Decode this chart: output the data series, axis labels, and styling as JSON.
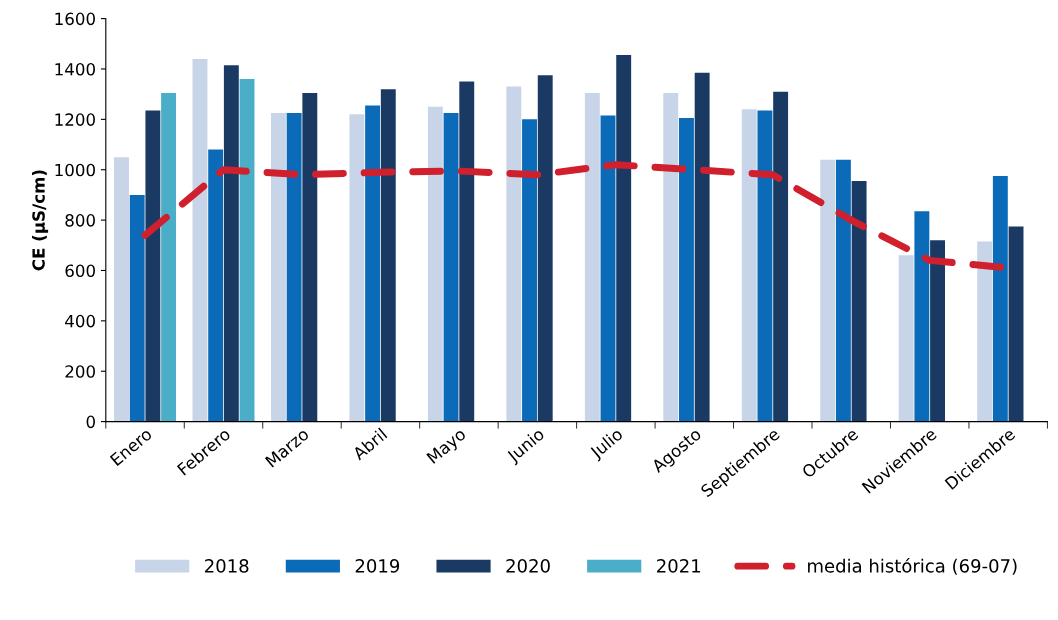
{
  "chart_data": {
    "type": "bar",
    "ylabel": "CE (µS/cm)",
    "categories": [
      "Enero",
      "Febrero",
      "Marzo",
      "Abril",
      "Mayo",
      "Junio",
      "Julio",
      "Agosto",
      "Septiembre",
      "Octubre",
      "Noviembre",
      "Diciembre"
    ],
    "series": [
      {
        "name": "2018",
        "color": "#c8d4e8",
        "values": [
          1050,
          1440,
          1225,
          1220,
          1250,
          1330,
          1305,
          1305,
          1240,
          1040,
          660,
          715
        ]
      },
      {
        "name": "2019",
        "color": "#0b6bb8",
        "values": [
          900,
          1080,
          1225,
          1255,
          1225,
          1200,
          1215,
          1205,
          1235,
          1040,
          835,
          975
        ]
      },
      {
        "name": "2020",
        "color": "#1a3a64",
        "values": [
          1235,
          1415,
          1305,
          1320,
          1350,
          1375,
          1455,
          1385,
          1310,
          955,
          720,
          775
        ]
      },
      {
        "name": "2021",
        "color": "#4aaec8",
        "values": [
          1305,
          1360,
          null,
          null,
          null,
          null,
          null,
          null,
          null,
          null,
          null,
          null
        ]
      },
      {
        "name": "media histórica (69-07)",
        "type": "line",
        "line_style": "dashed",
        "color": "#d0202e",
        "values": [
          740,
          1000,
          980,
          990,
          995,
          980,
          1020,
          1000,
          980,
          800,
          640,
          610
        ]
      }
    ],
    "ylim": [
      0,
      1600
    ],
    "yticks": [
      0,
      200,
      400,
      600,
      800,
      1000,
      1200,
      1400,
      1600
    ],
    "grid": false,
    "legend": "bottom"
  }
}
